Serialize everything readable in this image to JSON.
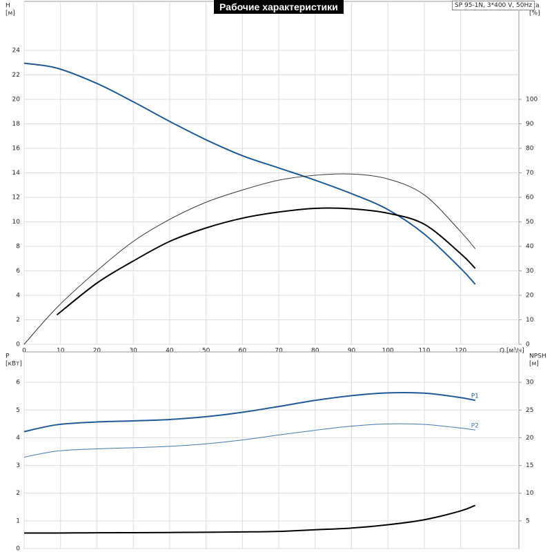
{
  "header": {
    "title": "Рабочие характеристики",
    "model": "SP 95-1N, 3*400 V, 50Hz"
  },
  "chart_data": [
    {
      "type": "line",
      "ylabel": [
        "H",
        "[м]"
      ],
      "y2label": [
        "eta",
        "[%]"
      ],
      "xlabel": "Q [м³/ч]",
      "x": [
        0,
        9,
        20,
        30,
        40,
        50,
        60,
        70,
        80,
        90,
        100,
        110,
        120,
        124
      ],
      "xlim": [
        0,
        136
      ],
      "xticks": [
        0,
        10,
        20,
        30,
        40,
        50,
        60,
        70,
        80,
        90,
        100,
        110,
        120
      ],
      "ylim": [
        0,
        28
      ],
      "yticks": [
        0,
        2,
        4,
        6,
        8,
        10,
        12,
        14,
        16,
        18,
        20,
        22,
        24
      ],
      "y2lim": [
        0,
        140
      ],
      "y2ticks": [
        0,
        10,
        20,
        30,
        40,
        50,
        60,
        70,
        80,
        90,
        100
      ],
      "grid": true,
      "series": [
        {
          "color": "#1f5a96",
          "width": 2,
          "values": [
            22.95,
            22.55,
            21.3,
            19.8,
            18.2,
            16.7,
            15.4,
            14.4,
            13.4,
            12.3,
            11.0,
            9.0,
            6.2,
            4.9
          ]
        },
        {
          "color": "#333333",
          "width": 1,
          "axis": "y2",
          "values": [
            0,
            15,
            30,
            42,
            51,
            58,
            63,
            67,
            69,
            69.5,
            67.5,
            61,
            46,
            39
          ]
        },
        {
          "color": "#000000",
          "width": 2,
          "axis": "y2",
          "values": [
            null,
            12,
            25,
            34,
            42,
            47.5,
            51.5,
            54,
            55.5,
            55.3,
            53.5,
            49,
            37,
            31
          ]
        }
      ]
    },
    {
      "type": "line",
      "ylabel": [
        "P",
        "[кВт]"
      ],
      "y2label": [
        "NPSH",
        "[м]"
      ],
      "x": [
        0,
        9,
        20,
        30,
        40,
        50,
        60,
        70,
        80,
        90,
        100,
        110,
        120,
        124
      ],
      "xlim": [
        0,
        136
      ],
      "ylim": [
        0,
        7.1
      ],
      "yticks": [
        0,
        1,
        2,
        3,
        4,
        5,
        6
      ],
      "y2lim": [
        0,
        35.5
      ],
      "y2ticks": [
        5,
        10,
        15,
        20,
        25,
        30
      ],
      "grid": true,
      "series": [
        {
          "label": "P1",
          "color": "#1f5a96",
          "width": 2,
          "values": [
            4.22,
            4.47,
            4.57,
            4.61,
            4.66,
            4.76,
            4.92,
            5.13,
            5.35,
            5.52,
            5.62,
            5.61,
            5.45,
            5.35
          ]
        },
        {
          "label": "P2",
          "color": "#3f78b0",
          "width": 1,
          "values": [
            3.3,
            3.52,
            3.6,
            3.64,
            3.69,
            3.78,
            3.92,
            4.1,
            4.27,
            4.42,
            4.5,
            4.48,
            4.35,
            4.28
          ]
        },
        {
          "color": "#000000",
          "width": 2,
          "axis": "y2",
          "values": [
            2.8,
            2.8,
            2.85,
            2.87,
            2.9,
            2.95,
            3.0,
            3.1,
            3.4,
            3.7,
            4.3,
            5.2,
            6.8,
            7.8
          ]
        }
      ]
    }
  ]
}
